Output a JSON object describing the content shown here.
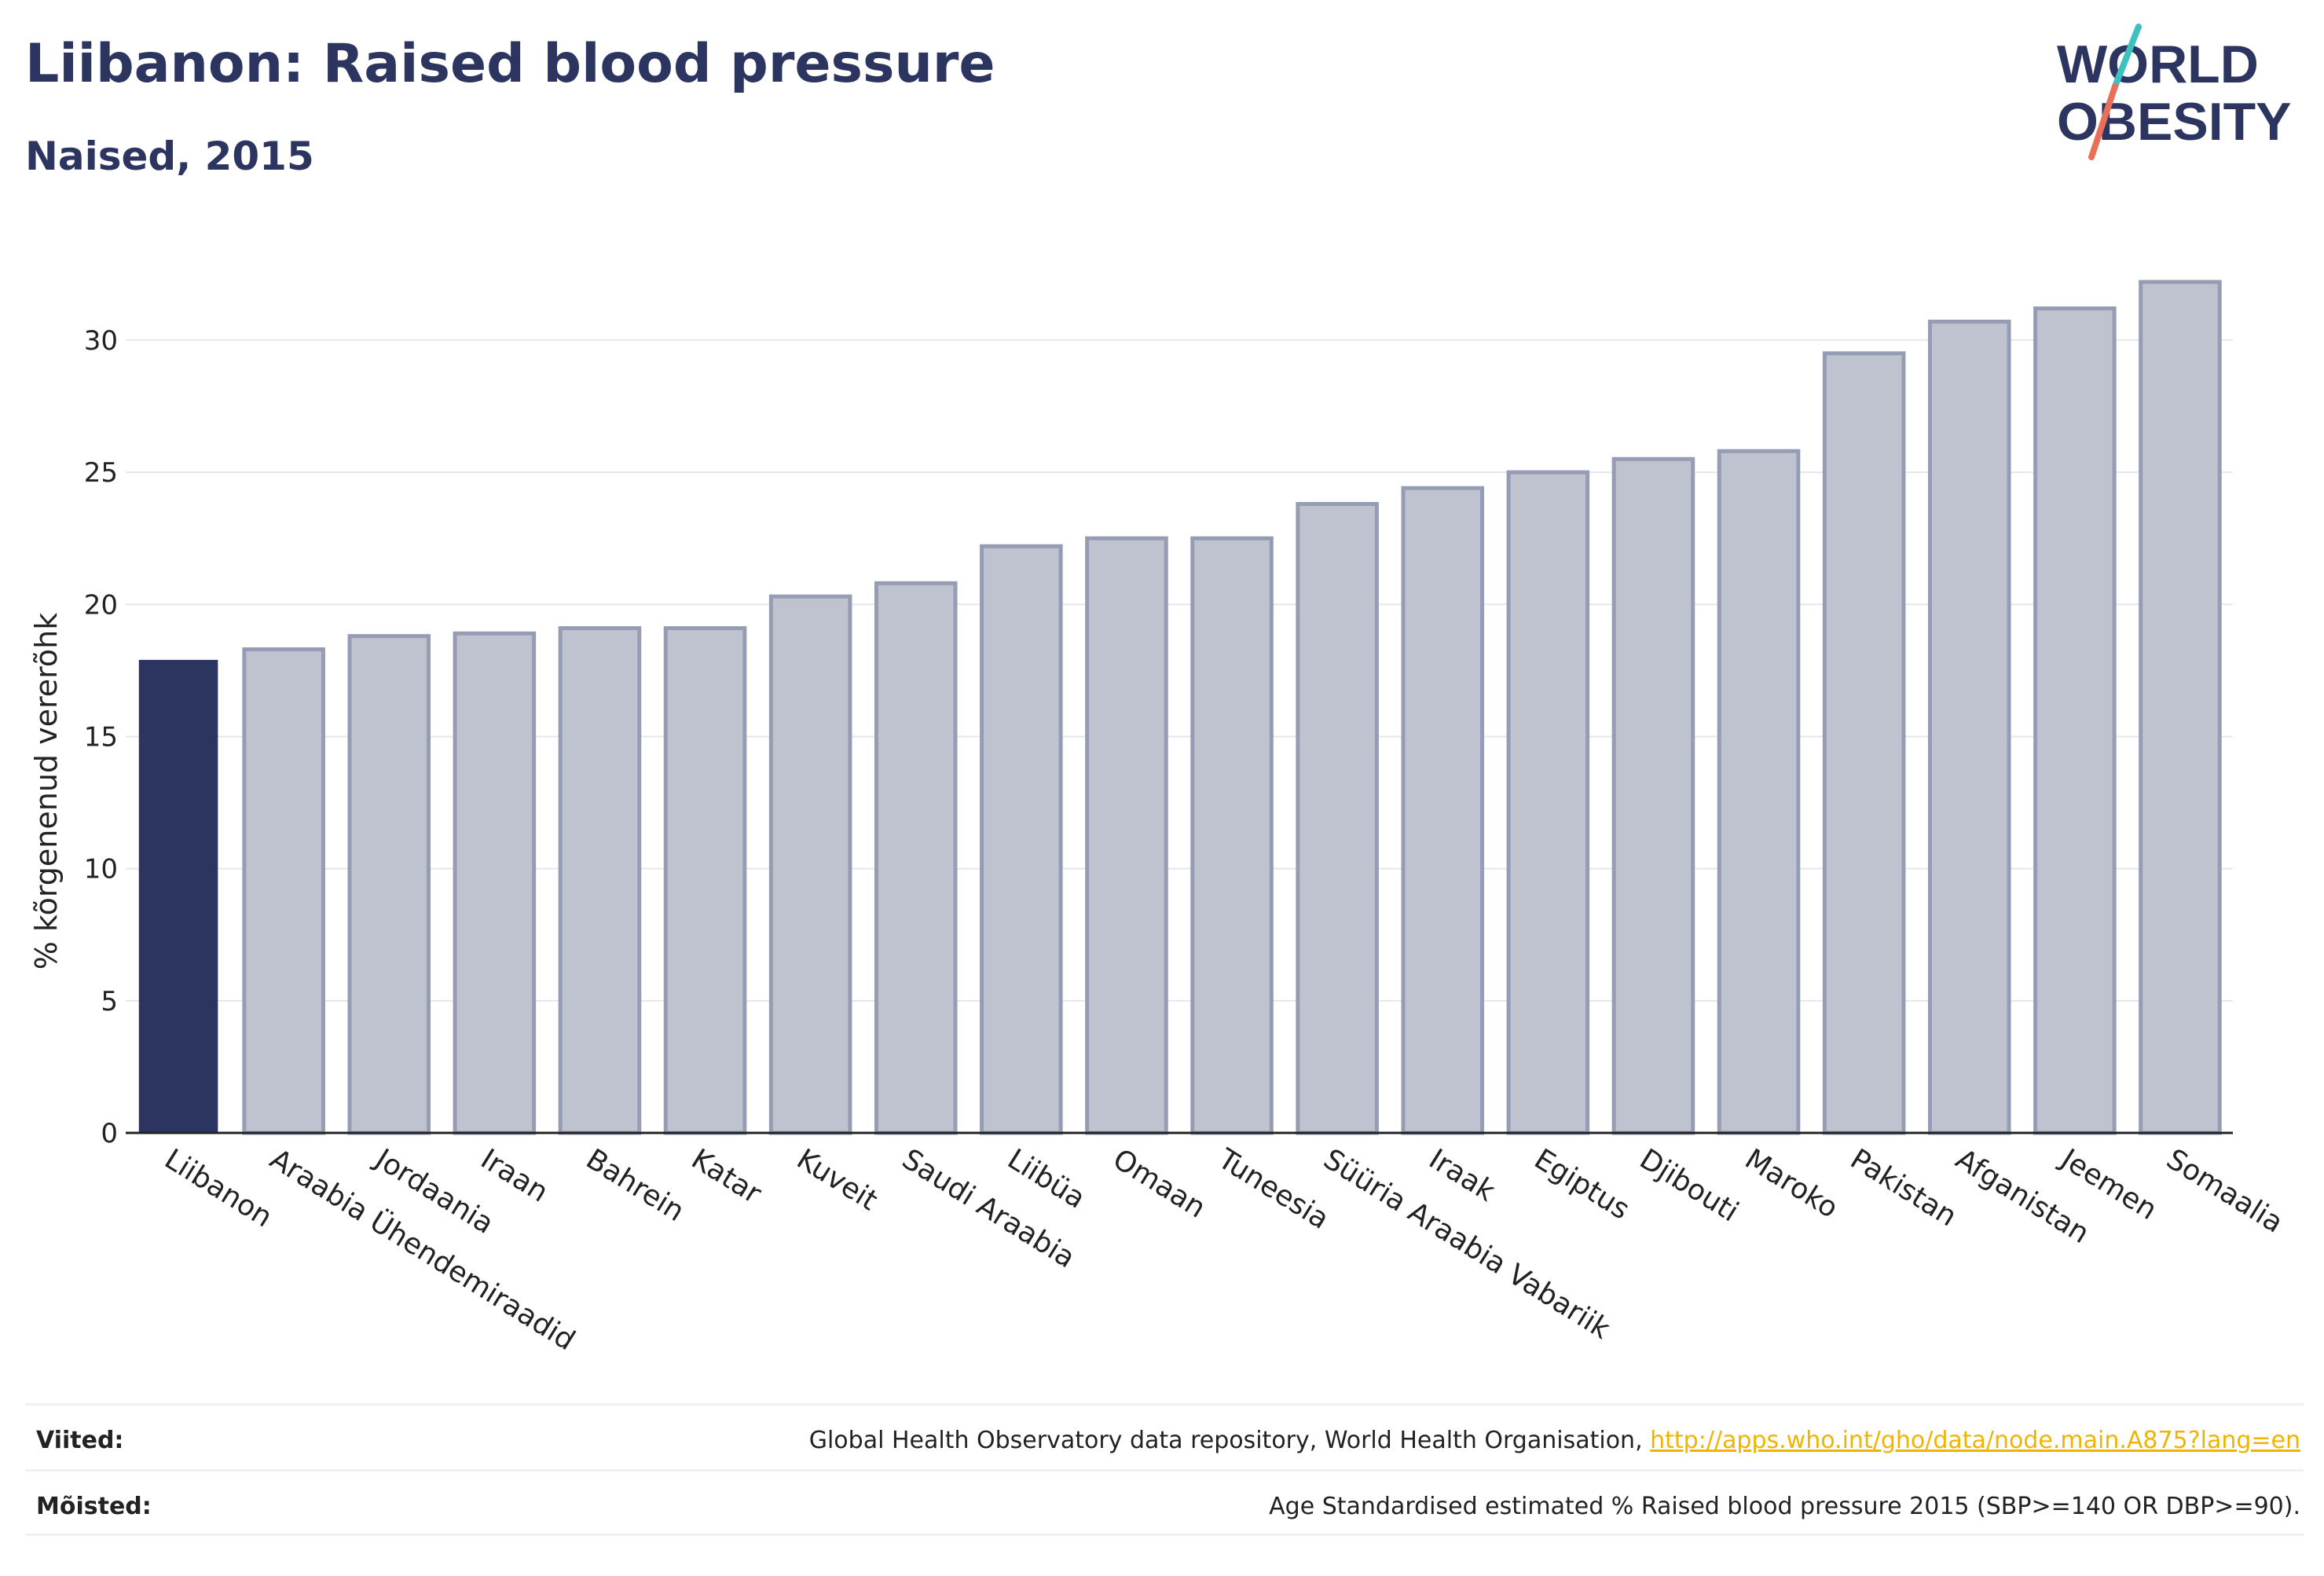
{
  "header": {
    "title": "Liibanon: Raised blood pressure",
    "subtitle": "Naised, 2015"
  },
  "logo": {
    "line1": "WORLD",
    "line2": "OBESITY",
    "colors": {
      "text": "#2c3560",
      "slash_teal": "#3cc0c0",
      "slash_coral": "#e8705a"
    }
  },
  "colors": {
    "highlight": "#2c3560",
    "bar_fill": "#bfc2cf",
    "bar_stroke": "#979cb5",
    "grid": "#e6e7ec",
    "axis": "#222222",
    "link": "#f0b400"
  },
  "chart_data": {
    "type": "bar",
    "title": "Liibanon: Raised blood pressure",
    "subtitle": "Naised, 2015",
    "ylabel": "% kõrgenenud vererõhk",
    "xlabel": "",
    "ylim": [
      0,
      33
    ],
    "yticks": [
      0,
      5,
      10,
      15,
      20,
      25,
      30
    ],
    "grid": true,
    "highlight_category": "Liibanon",
    "categories": [
      "Liibanon",
      "Araabia Ühendemiraadid",
      "Jordaania",
      "Iraan",
      "Bahrein",
      "Katar",
      "Kuveit",
      "Saudi Araabia",
      "Liibüa",
      "Omaan",
      "Tuneesia",
      "Süüria Araabia Vabariik",
      "Iraak",
      "Egiptus",
      "Djibouti",
      "Maroko",
      "Pakistan",
      "Afganistan",
      "Jeemen",
      "Somaalia"
    ],
    "values": [
      17.9,
      18.3,
      18.8,
      18.9,
      19.1,
      19.1,
      20.3,
      20.8,
      22.2,
      22.5,
      22.5,
      23.8,
      24.4,
      25.0,
      25.5,
      25.8,
      29.5,
      30.7,
      31.2,
      32.2
    ]
  },
  "footer": {
    "sources_label": "Viited:",
    "sources_text": "Global Health Observatory data repository, World Health Organisation, ",
    "sources_link": "http://apps.who.int/gho/data/node.main.A875?lang=en",
    "definitions_label": "Mõisted:",
    "definitions_text": "Age Standardised estimated % Raised blood pressure 2015 (SBP>=140 OR DBP>=90)."
  }
}
